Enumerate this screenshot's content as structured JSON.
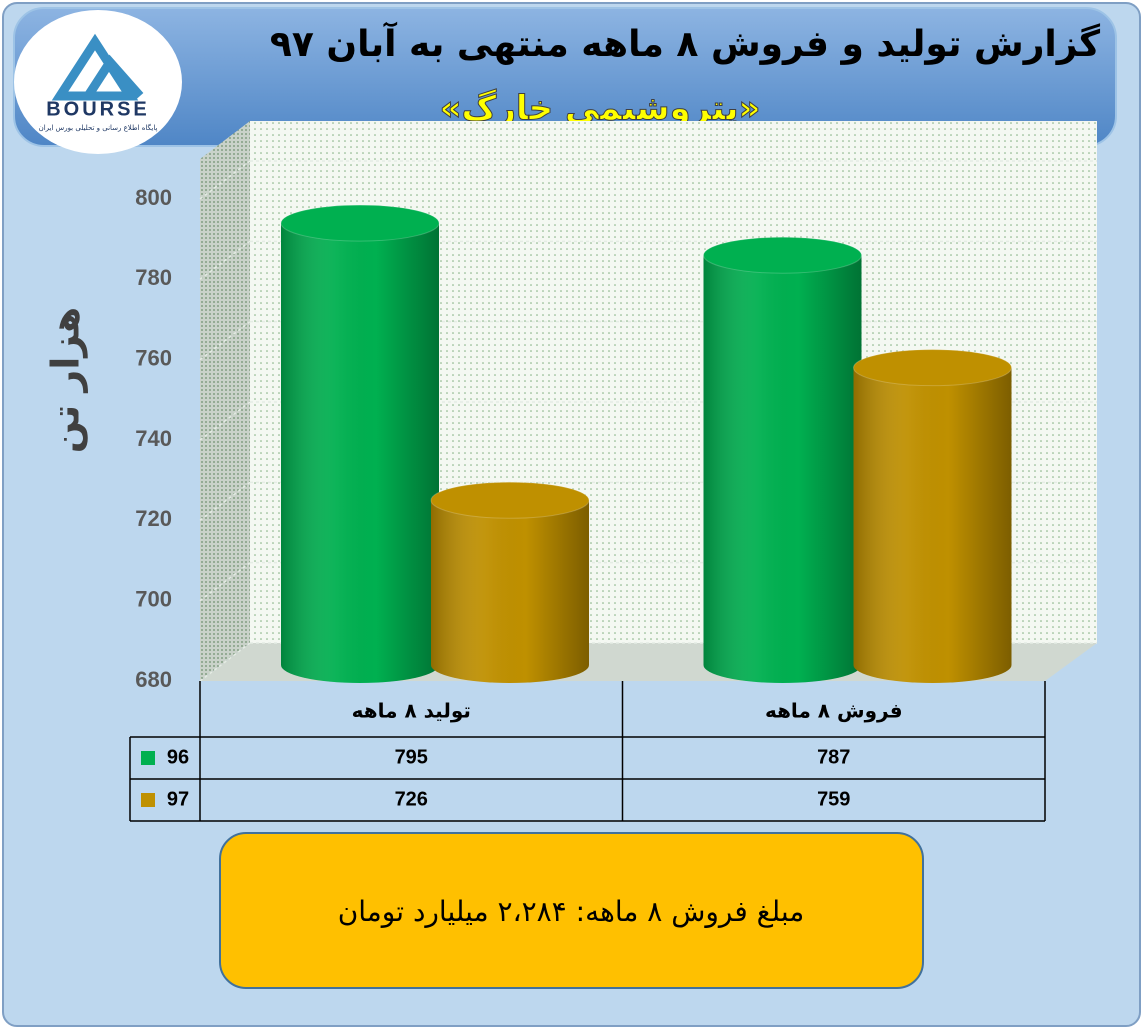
{
  "header": {
    "logo": "BOURSE",
    "logo_caption": "پایگاه اطلاع رسانی و تحلیلی بورس ایران"
  },
  "chart_data": {
    "type": "cylinder-bar",
    "title": "گزارش تولید و فروش ۸ ماهه منتهی به آبان ۹۷",
    "subtitle": "«پتروشیمی خارگ»",
    "y_label": "هزار تن",
    "categories": [
      "تولید ۸ ماهه",
      "فروش ۸ ماهه"
    ],
    "series": [
      {
        "name": "96",
        "color": "#00b050",
        "values": [
          795,
          787
        ]
      },
      {
        "name": "97",
        "color": "#bf9000",
        "values": [
          726,
          759
        ]
      }
    ],
    "ylim": [
      680,
      800
    ],
    "yticks": [
      680,
      700,
      720,
      740,
      760,
      780,
      800
    ],
    "grid": true,
    "data_table": true
  },
  "footer": {
    "text": "مبلغ فروش ۸ ماهه: ۲،۲۸۴ میلیارد تومان"
  }
}
